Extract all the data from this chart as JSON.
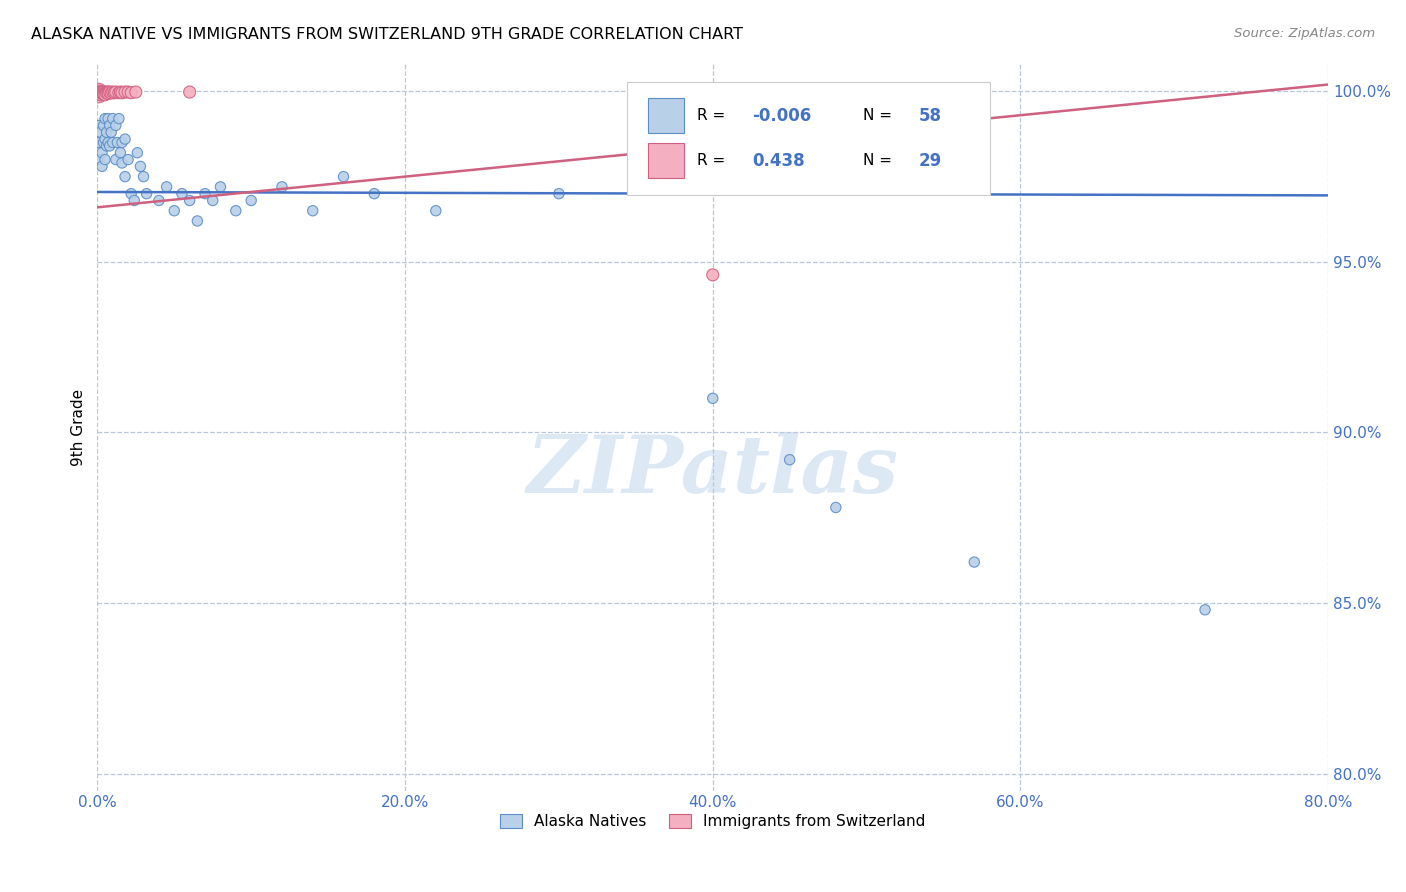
{
  "title": "ALASKA NATIVE VS IMMIGRANTS FROM SWITZERLAND 9TH GRADE CORRELATION CHART",
  "source": "Source: ZipAtlas.com",
  "ylabel": "9th Grade",
  "xlim": [
    0.0,
    0.8
  ],
  "ylim": [
    0.795,
    1.008
  ],
  "ytick_vals": [
    0.8,
    0.85,
    0.9,
    0.95,
    1.0
  ],
  "xtick_vals": [
    0.0,
    0.2,
    0.4,
    0.6,
    0.8
  ],
  "blue_R": "-0.006",
  "blue_N": "58",
  "pink_R": "0.438",
  "pink_N": "29",
  "blue_color": "#b8d0e8",
  "pink_color": "#f4afc0",
  "blue_edge_color": "#5b8dc8",
  "pink_edge_color": "#d06080",
  "blue_line_color": "#4472c4",
  "pink_line_color": "#d06080",
  "watermark_text": "ZIPatlas",
  "watermark_color": "#dce8f4",
  "legend_label_blue": "Alaska Natives",
  "legend_label_pink": "Immigrants from Switzerland",
  "blue_trend_y0": 0.9705,
  "blue_trend_y1": 0.9695,
  "pink_trend_x0": 0.0,
  "pink_trend_x1": 0.8,
  "pink_trend_y0": 0.966,
  "pink_trend_y1": 1.002,
  "blue_scatter_x": [
    0.001,
    0.001,
    0.001,
    0.002,
    0.003,
    0.003,
    0.004,
    0.004,
    0.005,
    0.005,
    0.005,
    0.006,
    0.006,
    0.007,
    0.007,
    0.008,
    0.008,
    0.009,
    0.01,
    0.01,
    0.012,
    0.012,
    0.013,
    0.014,
    0.015,
    0.016,
    0.016,
    0.018,
    0.018,
    0.02,
    0.022,
    0.024,
    0.026,
    0.028,
    0.03,
    0.032,
    0.04,
    0.045,
    0.05,
    0.055,
    0.06,
    0.065,
    0.07,
    0.075,
    0.08,
    0.09,
    0.1,
    0.12,
    0.14,
    0.16,
    0.18,
    0.22,
    0.3,
    0.4,
    0.45,
    0.48,
    0.57,
    0.72
  ],
  "blue_scatter_y": [
    0.99,
    0.985,
    0.98,
    0.988,
    0.982,
    0.978,
    0.99,
    0.985,
    0.992,
    0.986,
    0.98,
    0.988,
    0.984,
    0.992,
    0.985,
    0.99,
    0.984,
    0.988,
    0.992,
    0.985,
    0.99,
    0.98,
    0.985,
    0.992,
    0.982,
    0.985,
    0.979,
    0.986,
    0.975,
    0.98,
    0.97,
    0.968,
    0.982,
    0.978,
    0.975,
    0.97,
    0.968,
    0.972,
    0.965,
    0.97,
    0.968,
    0.962,
    0.97,
    0.968,
    0.972,
    0.965,
    0.968,
    0.972,
    0.965,
    0.975,
    0.97,
    0.965,
    0.97,
    0.91,
    0.892,
    0.878,
    0.862,
    0.848
  ],
  "blue_scatter_sizes": [
    55,
    55,
    55,
    55,
    55,
    55,
    55,
    55,
    55,
    55,
    55,
    55,
    55,
    55,
    55,
    55,
    55,
    55,
    55,
    55,
    55,
    55,
    55,
    55,
    55,
    55,
    55,
    55,
    55,
    55,
    55,
    55,
    55,
    55,
    55,
    55,
    55,
    55,
    55,
    55,
    55,
    55,
    55,
    55,
    55,
    55,
    55,
    55,
    55,
    55,
    55,
    55,
    55,
    55,
    55,
    55,
    55,
    55
  ],
  "pink_scatter_x": [
    0.0005,
    0.001,
    0.001,
    0.002,
    0.002,
    0.003,
    0.003,
    0.004,
    0.004,
    0.005,
    0.005,
    0.006,
    0.006,
    0.007,
    0.007,
    0.008,
    0.009,
    0.01,
    0.011,
    0.012,
    0.014,
    0.015,
    0.016,
    0.018,
    0.02,
    0.022,
    0.025,
    0.06,
    0.4
  ],
  "pink_scatter_y": [
    0.9995,
    0.9998,
    0.9992,
    0.9998,
    0.999,
    0.9998,
    0.9994,
    0.9998,
    0.9992,
    0.9996,
    0.999,
    0.9998,
    0.9995,
    0.9998,
    0.9994,
    0.9998,
    0.9995,
    0.9998,
    0.9996,
    0.9998,
    0.9996,
    0.9998,
    0.9996,
    0.9998,
    0.9998,
    0.9996,
    0.9998,
    0.9998,
    0.9462
  ],
  "pink_scatter_sizes": [
    200,
    100,
    75,
    75,
    75,
    75,
    75,
    75,
    75,
    75,
    75,
    75,
    75,
    75,
    75,
    75,
    75,
    75,
    75,
    75,
    75,
    75,
    75,
    75,
    75,
    75,
    75,
    75,
    75
  ]
}
